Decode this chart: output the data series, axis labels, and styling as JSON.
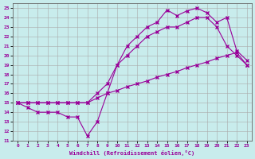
{
  "xlabel": "Windchill (Refroidissement éolien,°C)",
  "bg_color": "#c8ecec",
  "line_color": "#990099",
  "grid_color": "#aaaaaa",
  "xlim": [
    -0.5,
    23.5
  ],
  "ylim": [
    11,
    25.5
  ],
  "xticks": [
    0,
    1,
    2,
    3,
    4,
    5,
    6,
    7,
    8,
    9,
    10,
    11,
    12,
    13,
    14,
    15,
    16,
    17,
    18,
    19,
    20,
    21,
    22,
    23
  ],
  "yticks": [
    11,
    12,
    13,
    14,
    15,
    16,
    17,
    18,
    19,
    20,
    21,
    22,
    23,
    24,
    25
  ],
  "line1_x": [
    0,
    1,
    2,
    3,
    4,
    5,
    6,
    7,
    8,
    9,
    10,
    11,
    12,
    13,
    14,
    15,
    16,
    17,
    18,
    19,
    20,
    21,
    22,
    23
  ],
  "line1_y": [
    15,
    15,
    15,
    15,
    15,
    15,
    15,
    15,
    15.5,
    16,
    16.3,
    16.7,
    17.0,
    17.3,
    17.7,
    18.0,
    18.3,
    18.7,
    19.0,
    19.3,
    19.7,
    20.0,
    20.3,
    19.0
  ],
  "line2_x": [
    0,
    1,
    2,
    3,
    4,
    5,
    6,
    7,
    8,
    9,
    10,
    11,
    12,
    13,
    14,
    15,
    16,
    17,
    18,
    19,
    20,
    21,
    22,
    23
  ],
  "line2_y": [
    15,
    14.5,
    14,
    14,
    14,
    13.5,
    13.5,
    11.5,
    13,
    16,
    19,
    20,
    21,
    22,
    22.5,
    23,
    23,
    23.5,
    24,
    24,
    23,
    21,
    20,
    19
  ],
  "line3_x": [
    0,
    1,
    2,
    3,
    4,
    5,
    6,
    7,
    8,
    9,
    10,
    11,
    12,
    13,
    14,
    15,
    16,
    17,
    18,
    19,
    20,
    21,
    22,
    23
  ],
  "line3_y": [
    15,
    15,
    15,
    15,
    15,
    15,
    15,
    15,
    16,
    17,
    19,
    21,
    22,
    23,
    23.5,
    24.8,
    24.2,
    24.7,
    25,
    24.5,
    23.5,
    24,
    20.5,
    19.5
  ]
}
